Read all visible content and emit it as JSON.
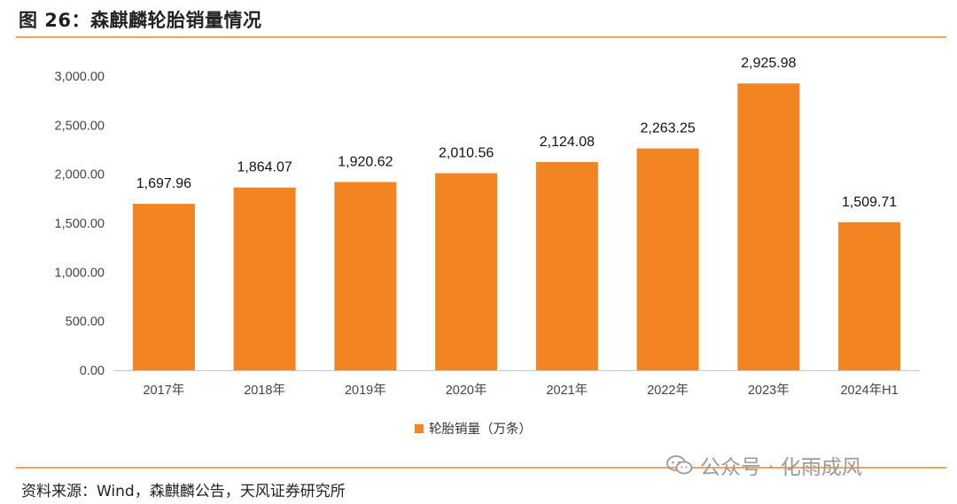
{
  "figure": {
    "title": "图 26：森麒麟轮胎销量情况",
    "source": "资料来源：Wind，森麒麟公告，天风证券研究所",
    "watermark": "公众号 · 化雨成风"
  },
  "colors": {
    "bar": "#f28521",
    "rule": "#f0a35c",
    "axis": "#c8c8c8"
  },
  "chart_data": {
    "type": "bar",
    "categories": [
      "2017年",
      "2018年",
      "2019年",
      "2020年",
      "2021年",
      "2022年",
      "2023年",
      "2024年H1"
    ],
    "series": [
      {
        "name": "轮胎销量（万条）",
        "values": [
          1697.96,
          1864.07,
          1920.62,
          2010.56,
          2124.08,
          2263.25,
          2925.98,
          1509.71
        ]
      }
    ],
    "data_labels": [
      "1,697.96",
      "1,864.07",
      "1,920.62",
      "2,010.56",
      "2,124.08",
      "2,263.25",
      "2,925.98",
      "1,509.71"
    ],
    "y_ticks": [
      "0.00",
      "500.00",
      "1,000.00",
      "1,500.00",
      "2,000.00",
      "2,500.00",
      "3,000.00"
    ],
    "ylim": [
      0,
      3000
    ],
    "grid": false,
    "legend_position": "bottom-center"
  }
}
